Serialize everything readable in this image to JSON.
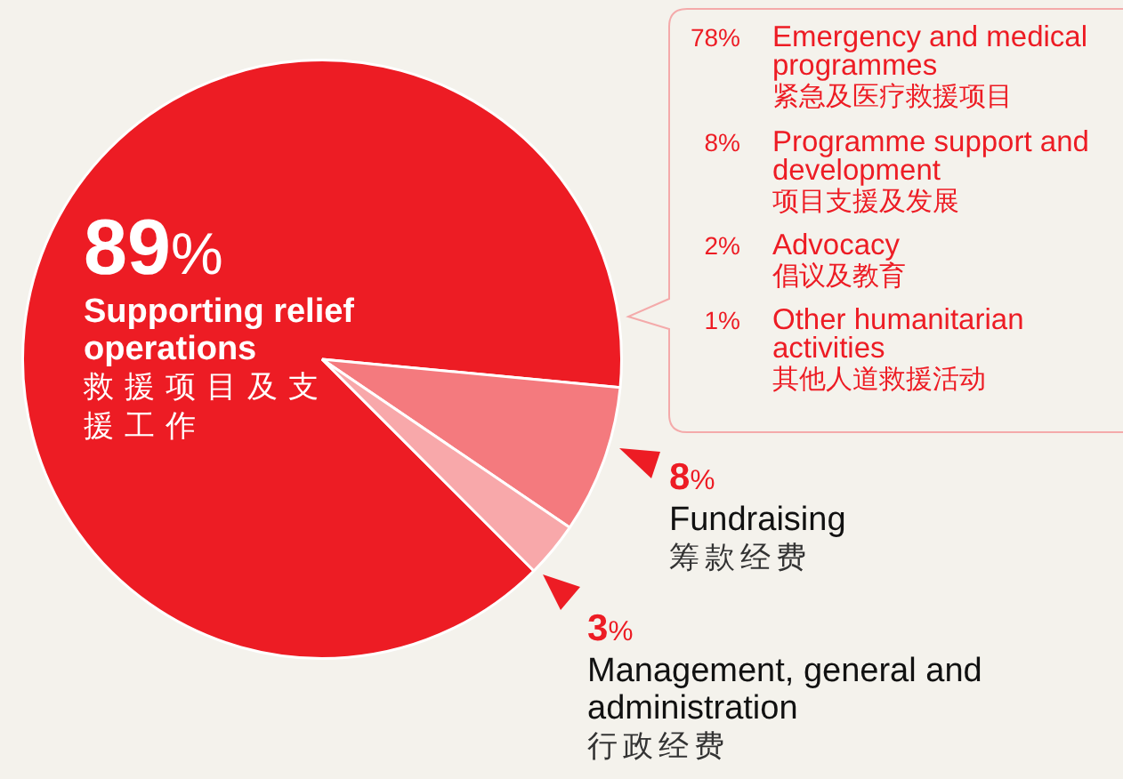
{
  "chart_data": {
    "type": "pie",
    "categories": [
      "Supporting relief operations",
      "Fundraising",
      "Management, general and administration"
    ],
    "values": [
      89,
      8,
      3
    ],
    "value_labels": [
      "89%",
      "8%",
      "3%"
    ],
    "colors": [
      "#ed1c24",
      "#f47a7e",
      "#f8a8aa"
    ],
    "legend": false,
    "annotations": [
      "救援项目及支援工作",
      "筹款经费",
      "行政经费",
      "78%",
      "Emergency and medical programmes",
      "紧急及医疗救援项目",
      "8%",
      "Programme support and development",
      "项目支援及发展",
      "2%",
      "Advocacy",
      "倡议及教育",
      "1%",
      "Other humanitarian activities",
      "其他人道救援活动"
    ]
  }
}
